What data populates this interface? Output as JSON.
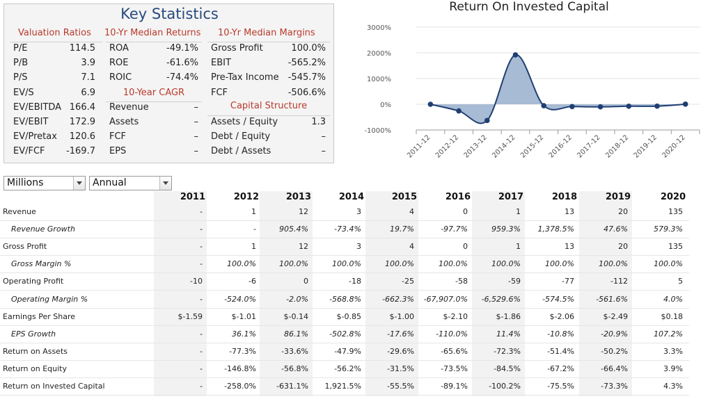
{
  "key_stats": {
    "title": "Key Statistics",
    "headers": [
      "Valuation Ratios",
      "10-Yr Median Returns",
      "10-Yr Median Margins"
    ],
    "valuation": [
      {
        "label": "P/E",
        "value": "114.5"
      },
      {
        "label": "P/B",
        "value": "3.9"
      },
      {
        "label": "P/S",
        "value": "7.1"
      },
      {
        "label": "EV/S",
        "value": "6.9"
      },
      {
        "label": "EV/EBITDA",
        "value": "166.4"
      },
      {
        "label": "EV/EBIT",
        "value": "172.9"
      },
      {
        "label": "EV/Pretax",
        "value": "120.6"
      },
      {
        "label": "EV/FCF",
        "value": "-169.7"
      }
    ],
    "returns": [
      {
        "label": "ROA",
        "value": "-49.1%"
      },
      {
        "label": "ROE",
        "value": "-61.6%"
      },
      {
        "label": "ROIC",
        "value": "-74.4%"
      }
    ],
    "cagr_title": "10-Year CAGR",
    "cagr": [
      {
        "label": "Revenue",
        "value": "–"
      },
      {
        "label": "Assets",
        "value": "–"
      },
      {
        "label": "FCF",
        "value": "–"
      },
      {
        "label": "EPS",
        "value": "–"
      }
    ],
    "margins": [
      {
        "label": "Gross Profit",
        "value": "100.0%"
      },
      {
        "label": "EBIT",
        "value": "-565.2%"
      },
      {
        "label": "Pre-Tax Income",
        "value": "-545.7%"
      },
      {
        "label": "FCF",
        "value": "-506.6%"
      }
    ],
    "capital_title": "Capital Structure",
    "capital": [
      {
        "label": "Assets / Equity",
        "value": "1.3"
      },
      {
        "label": "Debt / Equity",
        "value": "–"
      },
      {
        "label": "Debt / Assets",
        "value": "–"
      }
    ]
  },
  "chart_data": {
    "type": "area",
    "title": "Return On Invested Capital",
    "categories": [
      "2011-12",
      "2012-12",
      "2013-12",
      "2014-12",
      "2015-12",
      "2016-12",
      "2017-12",
      "2018-12",
      "2019-12",
      "2020-12"
    ],
    "values": [
      0,
      -258.0,
      -631.1,
      1921.5,
      -55.5,
      -89.1,
      -100.2,
      -75.5,
      -73.3,
      4.3
    ],
    "y_ticks": [
      "3000%",
      "2000%",
      "1000%",
      "0%",
      "-1000%"
    ],
    "ylim": [
      -1000,
      3000
    ],
    "colors": {
      "line": "#1f3f73",
      "fill": "#9fb4cf",
      "marker": "#1f3f73"
    }
  },
  "controls": {
    "units": "Millions",
    "period": "Annual"
  },
  "table": {
    "years": [
      "2011",
      "2012",
      "2013",
      "2014",
      "2015",
      "2016",
      "2017",
      "2018",
      "2019",
      "2020"
    ],
    "rows": [
      {
        "label": "Revenue",
        "italic": false,
        "values": [
          "-",
          "1",
          "12",
          "3",
          "4",
          "0",
          "1",
          "13",
          "20",
          "135"
        ]
      },
      {
        "label": "Revenue Growth",
        "italic": true,
        "values": [
          "-",
          "-",
          "905.4%",
          "-73.4%",
          "19.7%",
          "-97.7%",
          "959.3%",
          "1,378.5%",
          "47.6%",
          "579.3%"
        ]
      },
      {
        "label": "Gross Profit",
        "italic": false,
        "values": [
          "-",
          "1",
          "12",
          "3",
          "4",
          "0",
          "1",
          "13",
          "20",
          "135"
        ]
      },
      {
        "label": "Gross Margin %",
        "italic": true,
        "values": [
          "-",
          "100.0%",
          "100.0%",
          "100.0%",
          "100.0%",
          "100.0%",
          "100.0%",
          "100.0%",
          "100.0%",
          "100.0%"
        ]
      },
      {
        "label": "Operating Profit",
        "italic": false,
        "values": [
          "-10",
          "-6",
          "0",
          "-18",
          "-25",
          "-58",
          "-59",
          "-77",
          "-112",
          "5"
        ]
      },
      {
        "label": "Operating Margin %",
        "italic": true,
        "values": [
          "-",
          "-524.0%",
          "-2.0%",
          "-568.8%",
          "-662.3%",
          "-67,907.0%",
          "-6,529.6%",
          "-574.5%",
          "-561.6%",
          "4.0%"
        ]
      },
      {
        "label": "Earnings Per Share",
        "italic": false,
        "values": [
          "$-1.59",
          "$-1.01",
          "$-0.14",
          "$-0.85",
          "$-1.00",
          "$-2.10",
          "$-1.86",
          "$-2.06",
          "$-2.49",
          "$0.18"
        ]
      },
      {
        "label": "EPS Growth",
        "italic": true,
        "values": [
          "-",
          "36.1%",
          "86.1%",
          "-502.8%",
          "-17.6%",
          "-110.0%",
          "11.4%",
          "-10.8%",
          "-20.9%",
          "107.2%"
        ]
      },
      {
        "label": "Return on Assets",
        "italic": false,
        "values": [
          "-",
          "-77.3%",
          "-33.6%",
          "-47.9%",
          "-29.6%",
          "-65.6%",
          "-72.3%",
          "-51.4%",
          "-50.2%",
          "3.3%"
        ]
      },
      {
        "label": "Return on Equity",
        "italic": false,
        "values": [
          "-",
          "-146.8%",
          "-56.8%",
          "-56.2%",
          "-31.5%",
          "-73.5%",
          "-84.5%",
          "-67.2%",
          "-66.4%",
          "3.9%"
        ]
      },
      {
        "label": "Return on Invested Capital",
        "italic": false,
        "values": [
          "-",
          "-258.0%",
          "-631.1%",
          "1,921.5%",
          "-55.5%",
          "-89.1%",
          "-100.2%",
          "-75.5%",
          "-73.3%",
          "4.3%"
        ]
      }
    ]
  }
}
